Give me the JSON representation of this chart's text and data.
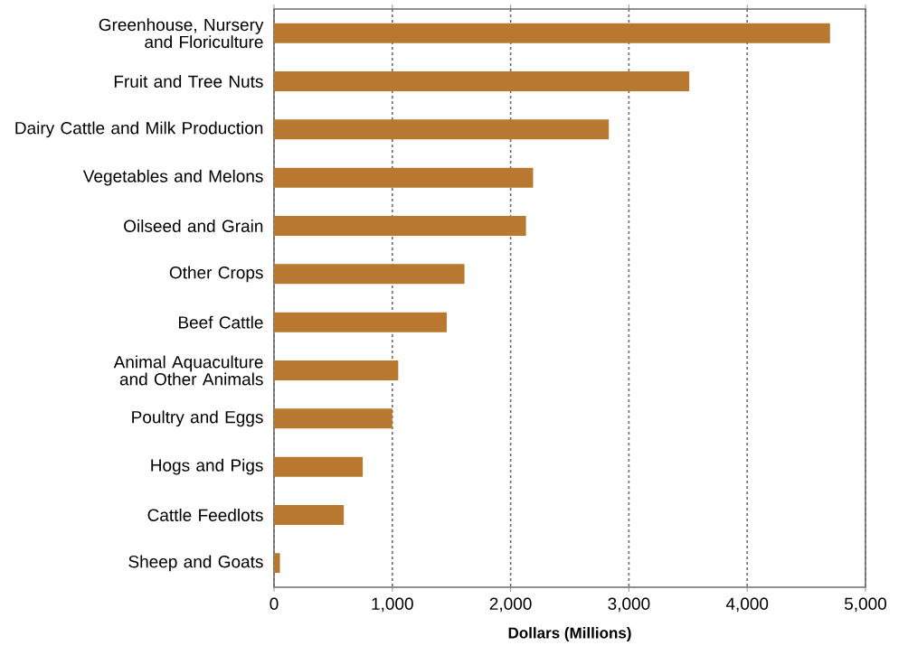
{
  "chart_data": {
    "type": "bar",
    "orientation": "horizontal",
    "xlabel": "Dollars (Millions)",
    "categories": [
      "Greenhouse, Nursery and Floriculture",
      "Fruit and Tree Nuts",
      "Dairy Cattle and Milk Production",
      "Vegetables and Melons",
      "Oilseed and Grain",
      "Other Crops",
      "Beef Cattle",
      "Animal Aquaculture and Other Animals",
      "Poultry and Eggs",
      "Hogs and Pigs",
      "Cattle Feedlots",
      "Sheep and Goats"
    ],
    "values": [
      4700,
      3510,
      2830,
      2190,
      2130,
      1610,
      1460,
      1050,
      1000,
      750,
      590,
      50
    ],
    "color": "#b8782f",
    "xlim": [
      0,
      5000
    ],
    "xticks": [
      0,
      {
        "value": 1000,
        "label": "1,000"
      },
      {
        "value": 2000,
        "label": "2,000"
      },
      {
        "value": 3000,
        "label": "3,000"
      },
      {
        "value": 4000,
        "label": "4,000"
      },
      {
        "value": 5000,
        "label": "5,000"
      }
    ],
    "grid": "x"
  }
}
